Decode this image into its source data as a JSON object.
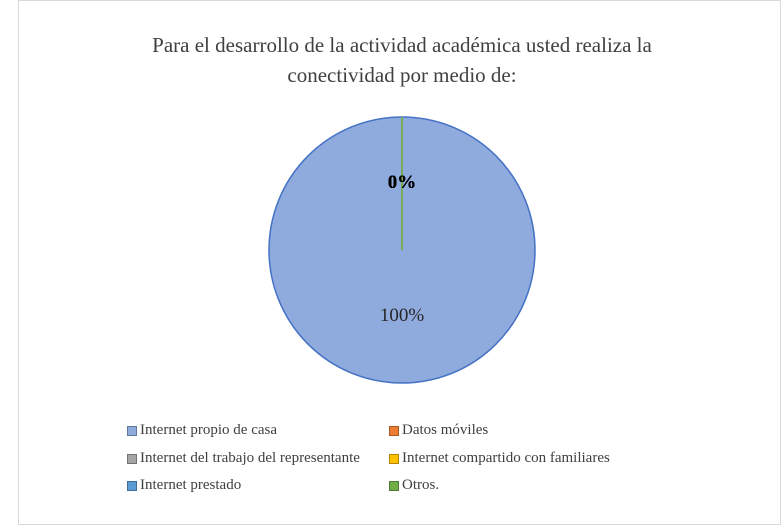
{
  "chart_data": {
    "type": "pie",
    "title": "Para el desarrollo de la actividad académica usted realiza la conectividad por medio de:",
    "categories": [
      "Internet propio de casa",
      "Datos móviles",
      "Internet del trabajo del representante",
      "Internet compartido con familiares",
      "Internet prestado",
      "Otros."
    ],
    "values": [
      100,
      0,
      0,
      0,
      0,
      0
    ],
    "value_labels": [
      "100%",
      "0%",
      "0%",
      "0%",
      "0%",
      "0%"
    ],
    "colors": [
      "#8faadc",
      "#ed7d31",
      "#a5a5a5",
      "#ffc000",
      "#5b9bd5",
      "#70ad47"
    ],
    "legend": "bottom"
  }
}
